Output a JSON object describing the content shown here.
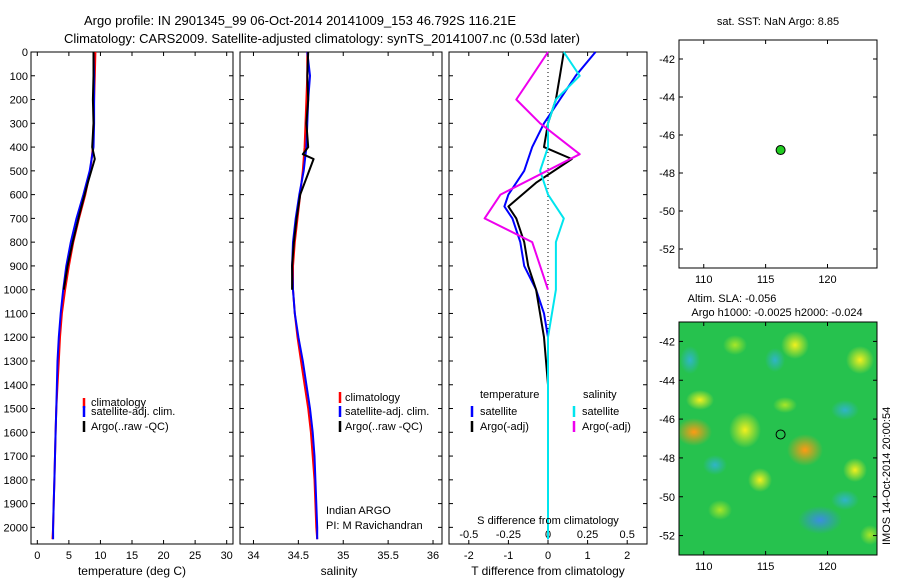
{
  "header": {
    "line1": "Argo profile: IN 2901345_99 06-Oct-2014 20141009_153 46.792S 116.21E",
    "line2": "Climatology: CARS2009. Satellite-adjusted climatology: synTS_20141007.nc (0.53d later)"
  },
  "side_label": "IMOS 14-Oct-2014 20:00:54",
  "colors": {
    "climatology": "#ff0000",
    "satellite": "#0000ff",
    "argo": "#000000",
    "salinity_satellite": "#00e5ee",
    "salinity_argo": "#ee00ee",
    "dot": "#22cc22"
  },
  "chart_data": [
    {
      "type": "line",
      "panel": "temperature",
      "xlabel": "temperature (deg C)",
      "ylabel": "",
      "xlim": [
        -1,
        31
      ],
      "ylim": [
        2070,
        0
      ],
      "xticks": [
        0,
        5,
        10,
        15,
        20,
        25,
        30
      ],
      "yticks": [
        0,
        100,
        200,
        300,
        400,
        500,
        600,
        700,
        800,
        900,
        1000,
        1100,
        1200,
        1300,
        1400,
        1500,
        1600,
        1700,
        1800,
        1900,
        2000
      ],
      "legend": [
        "climatology",
        "satellite-adj. clim.",
        "Argo(..raw -QC)"
      ],
      "series": [
        {
          "name": "climatology",
          "color": "climatology",
          "x": [
            9.2,
            9.1,
            9.0,
            8.9,
            8.8,
            8.4,
            7.6,
            6.6,
            5.7,
            5.0,
            4.4,
            3.9,
            3.6,
            3.4,
            3.2,
            3.0,
            2.9,
            2.8,
            2.7,
            2.6,
            2.5,
            2.4
          ],
          "y": [
            0,
            100,
            200,
            300,
            400,
            500,
            600,
            700,
            800,
            900,
            1000,
            1100,
            1200,
            1300,
            1400,
            1500,
            1600,
            1700,
            1800,
            1900,
            2000,
            2050
          ]
        },
        {
          "name": "satellite-adj. clim.",
          "color": "satellite",
          "x": [
            8.9,
            9.0,
            9.0,
            9.0,
            8.9,
            8.3,
            7.3,
            6.2,
            5.3,
            4.6,
            4.1,
            3.7,
            3.4,
            3.2,
            3.1,
            3.0,
            2.9,
            2.8,
            2.7,
            2.6,
            2.5,
            2.5
          ],
          "y": [
            0,
            100,
            200,
            300,
            400,
            500,
            600,
            700,
            800,
            900,
            1000,
            1100,
            1200,
            1300,
            1400,
            1500,
            1600,
            1700,
            1800,
            1900,
            2000,
            2050
          ]
        },
        {
          "name": "Argo(..raw -QC)",
          "color": "argo",
          "x": [
            8.9,
            8.9,
            8.8,
            8.9,
            8.7,
            9.1,
            8.0,
            6.7,
            5.6,
            4.8,
            4.2
          ],
          "y": [
            0,
            100,
            200,
            300,
            400,
            450,
            550,
            680,
            800,
            900,
            1000
          ]
        }
      ]
    },
    {
      "type": "line",
      "panel": "salinity",
      "xlabel": "salinity",
      "ylabel": "",
      "xlim": [
        33.85,
        36.1
      ],
      "ylim": [
        2070,
        0
      ],
      "xticks": [
        34,
        34.5,
        35,
        35.5,
        36
      ],
      "legend": [
        "climatology",
        "satellite-adj. clim.",
        "Argo(..raw -QC)"
      ],
      "annotation": [
        "Indian ARGO",
        "PI: M Ravichandran"
      ],
      "series": [
        {
          "name": "climatology",
          "color": "climatology",
          "x": [
            34.6,
            34.6,
            34.59,
            34.58,
            34.57,
            34.55,
            34.52,
            34.49,
            34.46,
            34.44,
            34.44,
            34.46,
            34.49,
            34.53,
            34.57,
            34.61,
            34.64,
            34.66,
            34.68,
            34.69,
            34.7,
            34.71
          ],
          "y": [
            0,
            100,
            200,
            300,
            400,
            500,
            600,
            700,
            800,
            900,
            1000,
            1100,
            1200,
            1300,
            1400,
            1500,
            1600,
            1700,
            1800,
            1900,
            2000,
            2050
          ]
        },
        {
          "name": "satellite-adj. clim.",
          "color": "satellite",
          "x": [
            34.6,
            34.63,
            34.61,
            34.6,
            34.59,
            34.56,
            34.51,
            34.47,
            34.44,
            34.43,
            34.44,
            34.46,
            34.5,
            34.55,
            34.59,
            34.63,
            34.66,
            34.68,
            34.69,
            34.7,
            34.71,
            34.71
          ],
          "y": [
            0,
            100,
            200,
            300,
            400,
            500,
            600,
            700,
            800,
            900,
            1000,
            1100,
            1200,
            1300,
            1400,
            1500,
            1600,
            1700,
            1800,
            1900,
            2000,
            2050
          ]
        },
        {
          "name": "Argo(..raw -QC)",
          "color": "argo",
          "x": [
            34.61,
            34.6,
            34.61,
            34.59,
            34.61,
            34.55,
            34.67,
            34.52,
            34.48,
            34.45,
            34.43,
            34.43
          ],
          "y": [
            0,
            100,
            200,
            300,
            400,
            430,
            450,
            600,
            700,
            800,
            900,
            1000
          ]
        }
      ]
    },
    {
      "type": "line",
      "panel": "difference",
      "xlabel": "T difference from climatology",
      "xlabel_top": "S difference from climatology",
      "xlim": [
        -2.5,
        2.5
      ],
      "ylim": [
        2070,
        0
      ],
      "xticks": [
        -2,
        -1,
        0,
        1,
        2
      ],
      "xticks_s": [
        -0.5,
        -0.25,
        0,
        0.25,
        0.5
      ],
      "legend": {
        "temperature": "temperature",
        "salinity": "salinity",
        "satellite": "satellite",
        "argo": "Argo(-adj)"
      },
      "series": [
        {
          "name": "temperature satellite",
          "color": "satellite",
          "x": [
            1.2,
            0.7,
            0.3,
            -0.1,
            -0.4,
            -0.6,
            -1.0,
            -1.1,
            -0.9,
            -0.7,
            -0.6,
            -0.3,
            -0.1,
            0.0,
            0.0,
            0.0,
            0.0,
            0.0,
            0.0,
            0.0,
            0.0,
            0.0
          ],
          "y": [
            0,
            100,
            200,
            300,
            400,
            500,
            600,
            650,
            700,
            800,
            900,
            1000,
            1100,
            1200,
            1300,
            1400,
            1500,
            1600,
            1700,
            1800,
            1900,
            2050
          ]
        },
        {
          "name": "temperature Argo(-adj)",
          "color": "argo",
          "x": [
            0.4,
            0.3,
            0.2,
            0.0,
            -0.1,
            0.6,
            -0.3,
            -1.0,
            -0.8,
            -0.6,
            -0.5,
            -0.3,
            -0.1,
            0.0
          ],
          "y": [
            0,
            100,
            200,
            300,
            400,
            450,
            550,
            650,
            700,
            800,
            900,
            1000,
            1200,
            1400
          ]
        },
        {
          "name": "salinity satellite",
          "color": "salinity_satellite",
          "x": [
            0.1,
            0.2,
            0.05,
            0.0,
            0.0,
            -0.05,
            0.0,
            0.1,
            0.05,
            0.05,
            0.0,
            0.0,
            0.0,
            0.0,
            0.0
          ],
          "y": [
            0,
            100,
            200,
            300,
            400,
            500,
            600,
            700,
            800,
            1000,
            1200,
            1400,
            1600,
            1800,
            2050
          ]
        },
        {
          "name": "salinity Argo(-adj)",
          "color": "salinity_argo",
          "x": [
            0.0,
            -0.1,
            -0.2,
            -0.05,
            0.2,
            -0.3,
            -0.4,
            -0.1,
            0.0
          ],
          "y": [
            0,
            100,
            200,
            300,
            430,
            600,
            700,
            800,
            1000
          ]
        }
      ]
    },
    {
      "type": "scatter",
      "panel": "sst-map",
      "title": "sat. SST: NaN Argo: 8.85",
      "xlim": [
        108,
        124
      ],
      "ylim": [
        -53,
        -41
      ],
      "xticks": [
        110,
        115,
        120
      ],
      "yticks": [
        -42,
        -44,
        -46,
        -48,
        -50,
        -52
      ],
      "points": [
        {
          "x": 116.21,
          "y": -46.792
        }
      ]
    },
    {
      "type": "heatmap",
      "panel": "sla-map",
      "title": "Altim. SLA: -0.056",
      "subtitle": "Argo h1000: -0.0025 h2000: -0.024",
      "xlim": [
        108,
        124
      ],
      "ylim": [
        -53,
        -41
      ],
      "xticks": [
        110,
        115,
        120
      ],
      "yticks": [
        -42,
        -44,
        -46,
        -48,
        -50,
        -52
      ],
      "points": [
        {
          "x": 116.21,
          "y": -46.792
        }
      ]
    }
  ]
}
